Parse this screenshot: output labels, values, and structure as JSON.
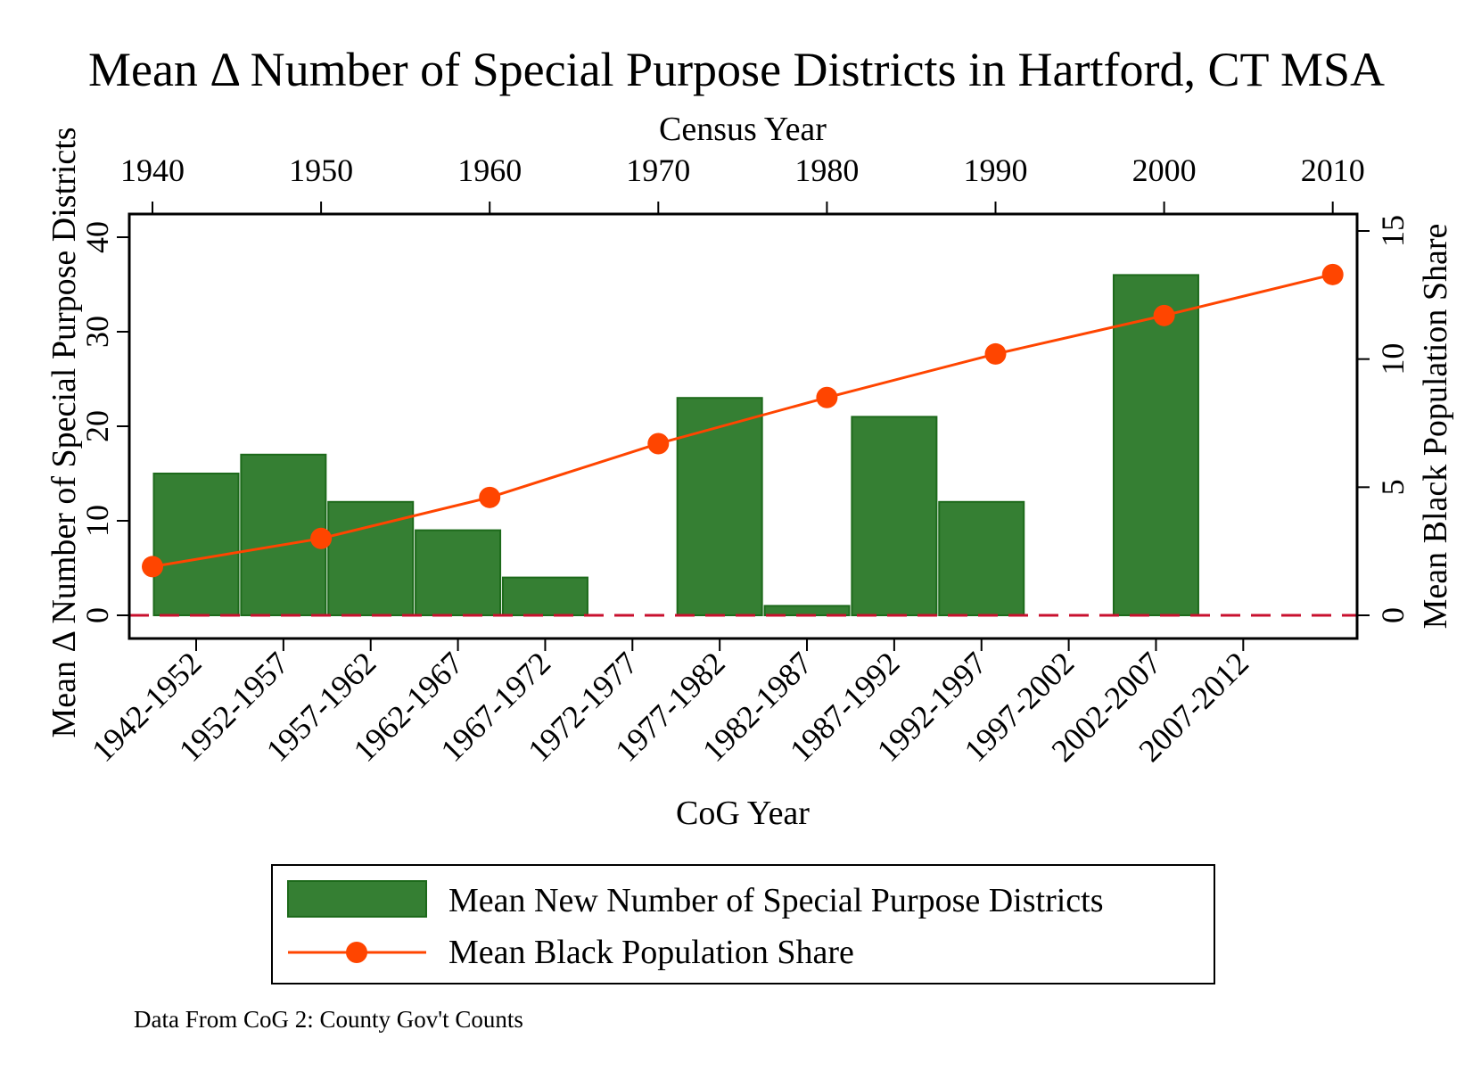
{
  "chart_data": {
    "type": "bar",
    "title": "Mean Δ Number of Special Purpose Districts in Hartford, CT MSA",
    "xlabel_bottom": "CoG Year",
    "xlabel_top": "Census Year",
    "ylabel_left": "Mean Δ Number of Special Purpose Districts",
    "ylabel_right": "Mean Black Population Share",
    "note": "Data From CoG 2: County Gov't Counts",
    "categories": [
      "1942-1952",
      "1952-1957",
      "1957-1962",
      "1962-1967",
      "1967-1972",
      "1972-1977",
      "1977-1982",
      "1982-1987",
      "1987-1992",
      "1992-1997",
      "1997-2002",
      "2002-2007",
      "2007-2012"
    ],
    "y_left_ticks": [
      "0",
      "10",
      "20",
      "30",
      "40"
    ],
    "y_left_lim": [
      -2.5,
      42.5
    ],
    "y_right_ticks": [
      "0",
      "5",
      "10",
      "15"
    ],
    "y_right_lim": [
      -0.9375,
      15.9375
    ],
    "x_top_ticks": [
      "1940",
      "1950",
      "1960",
      "1970",
      "1980",
      "1990",
      "2000",
      "2010"
    ],
    "series": [
      {
        "name": "Mean New Number of Special Purpose Districts",
        "type": "bar",
        "axis": "left",
        "color": "#357f33",
        "stroke": "#1d6a1b",
        "values": [
          15,
          17,
          12,
          9,
          4,
          0,
          23,
          1,
          21,
          12,
          0,
          36,
          0
        ]
      },
      {
        "name": "Mean Black Population Share",
        "type": "line",
        "axis": "right",
        "color": "#ff4500",
        "x": [
          1940,
          1950,
          1960,
          1970,
          1980,
          1990,
          2000,
          2010
        ],
        "values": [
          1.9,
          3.0,
          4.6,
          6.7,
          8.5,
          10.2,
          11.7,
          13.3
        ]
      }
    ],
    "reference_line": {
      "y": 0,
      "style": "dashed",
      "color": "#c8102e"
    },
    "legend_position": "bottom"
  }
}
